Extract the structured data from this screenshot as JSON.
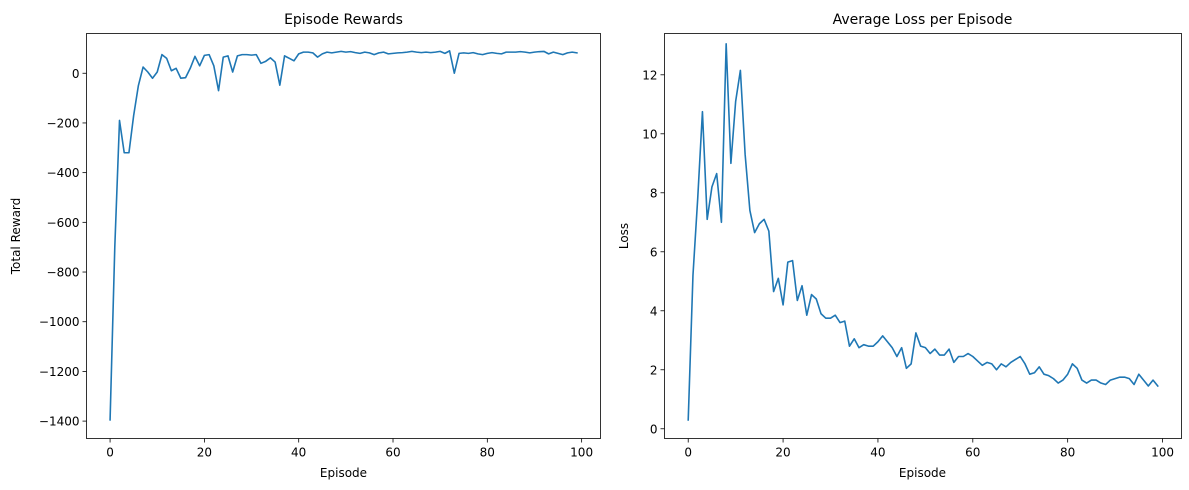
{
  "colors": {
    "series": "#1f77b4",
    "axes": "#000000",
    "background": "#ffffff"
  },
  "chart_data": [
    {
      "type": "line",
      "title": "Episode Rewards",
      "xlabel": "Episode",
      "ylabel": "Total Reward",
      "xlim": [
        -5,
        104
      ],
      "ylim": [
        -1470,
        160
      ],
      "xticks": [
        0,
        20,
        40,
        60,
        80,
        100
      ],
      "yticks": [
        -1400,
        -1200,
        -1000,
        -800,
        -600,
        -400,
        -200,
        0
      ],
      "xtick_labels": [
        "0",
        "20",
        "40",
        "60",
        "80",
        "100"
      ],
      "ytick_labels": [
        "−1400",
        "−1200",
        "−1000",
        "−800",
        "−600",
        "−400",
        "−200",
        "0"
      ],
      "grid": false,
      "series": [
        {
          "values": [
            -1395,
            -700,
            -190,
            -320,
            -320,
            -170,
            -50,
            25,
            5,
            -20,
            5,
            75,
            60,
            10,
            20,
            -20,
            -18,
            20,
            68,
            30,
            72,
            75,
            30,
            -70,
            65,
            70,
            5,
            70,
            75,
            75,
            73,
            75,
            40,
            48,
            62,
            45,
            -48,
            70,
            60,
            50,
            78,
            85,
            85,
            82,
            65,
            78,
            85,
            82,
            85,
            88,
            85,
            87,
            83,
            80,
            85,
            82,
            75,
            82,
            85,
            78,
            80,
            82,
            83,
            85,
            88,
            85,
            83,
            85,
            83,
            85,
            88,
            80,
            90,
            0,
            80,
            82,
            80,
            83,
            78,
            75,
            80,
            83,
            80,
            78,
            85,
            85,
            85,
            87,
            85,
            82,
            85,
            87,
            88,
            78,
            85,
            80,
            75,
            82,
            85,
            82
          ]
        }
      ]
    },
    {
      "type": "line",
      "title": "Average Loss per Episode",
      "xlabel": "Episode",
      "ylabel": "Loss",
      "xlim": [
        -5,
        104
      ],
      "ylim": [
        -0.33,
        13.4
      ],
      "xticks": [
        0,
        20,
        40,
        60,
        80,
        100
      ],
      "yticks": [
        0,
        2,
        4,
        6,
        8,
        10,
        12
      ],
      "xtick_labels": [
        "0",
        "20",
        "40",
        "60",
        "80",
        "100"
      ],
      "ytick_labels": [
        "0",
        "2",
        "4",
        "6",
        "8",
        "10",
        "12"
      ],
      "grid": false,
      "series": [
        {
          "values": [
            0.3,
            5.2,
            7.8,
            10.75,
            7.1,
            8.2,
            8.65,
            7.0,
            13.05,
            9.0,
            11.1,
            12.15,
            9.3,
            7.4,
            6.65,
            6.95,
            7.1,
            6.7,
            4.65,
            5.1,
            4.2,
            5.65,
            5.7,
            4.35,
            4.85,
            3.85,
            4.55,
            4.4,
            3.9,
            3.75,
            3.75,
            3.85,
            3.6,
            3.65,
            2.8,
            3.05,
            2.75,
            2.85,
            2.8,
            2.8,
            2.95,
            3.15,
            2.95,
            2.75,
            2.45,
            2.75,
            2.05,
            2.2,
            3.25,
            2.8,
            2.75,
            2.55,
            2.7,
            2.5,
            2.5,
            2.7,
            2.25,
            2.45,
            2.45,
            2.55,
            2.45,
            2.3,
            2.15,
            2.25,
            2.2,
            2.0,
            2.2,
            2.1,
            2.25,
            2.35,
            2.45,
            2.2,
            1.85,
            1.9,
            2.1,
            1.85,
            1.8,
            1.7,
            1.55,
            1.65,
            1.85,
            2.2,
            2.05,
            1.65,
            1.55,
            1.65,
            1.65,
            1.55,
            1.5,
            1.65,
            1.7,
            1.75,
            1.75,
            1.7,
            1.5,
            1.85,
            1.65,
            1.45,
            1.65,
            1.45
          ]
        }
      ]
    }
  ]
}
